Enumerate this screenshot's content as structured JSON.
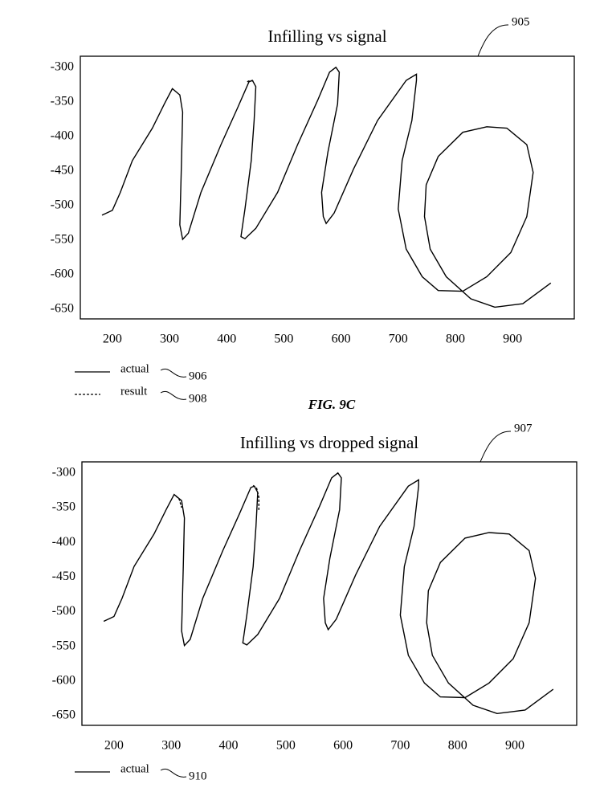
{
  "figure_label": "FIG. 9C",
  "chart_data": [
    {
      "type": "line",
      "title": "Infilling vs signal",
      "reference": "905",
      "xlim": [
        144,
        1008
      ],
      "ylim": [
        -664,
        -284
      ],
      "xticks": [
        200,
        300,
        400,
        500,
        600,
        700,
        800,
        900
      ],
      "yticks": [
        -300,
        -350,
        -400,
        -450,
        -500,
        -550,
        -600,
        -650
      ],
      "grid": false,
      "series": [
        {
          "name": "actual",
          "ref": "906",
          "color": "#000000",
          "dash": false,
          "x": [
            182,
            200,
            214,
            235,
            270,
            291,
            305,
            318,
            323,
            321,
            318,
            323,
            333,
            355,
            390,
            419,
            439,
            445,
            451,
            448,
            443,
            432,
            425,
            432,
            451,
            489,
            524,
            559,
            580,
            591,
            597,
            594,
            577,
            566,
            569,
            574,
            588,
            622,
            664,
            714,
            732,
            732,
            724,
            707,
            700,
            714,
            742,
            770,
            813,
            855,
            897,
            925,
            936,
            925,
            890,
            855,
            813,
            770,
            749,
            746,
            756,
            784,
            827,
            869,
            918,
            967
          ],
          "values": [
            -514,
            -507,
            -481,
            -435,
            -388,
            -353,
            -331,
            -340,
            -365,
            -435,
            -528,
            -549,
            -540,
            -481,
            -412,
            -359,
            -321,
            -319,
            -328,
            -377,
            -435,
            -505,
            -545,
            -548,
            -533,
            -481,
            -412,
            -348,
            -307,
            -300,
            -307,
            -353,
            -423,
            -481,
            -516,
            -526,
            -511,
            -447,
            -377,
            -319,
            -310,
            -319,
            -377,
            -435,
            -505,
            -563,
            -603,
            -623,
            -624,
            -603,
            -568,
            -516,
            -452,
            -412,
            -388,
            -386,
            -394,
            -429,
            -470,
            -516,
            -563,
            -603,
            -635,
            -647,
            -642,
            -612
          ]
        },
        {
          "name": "result",
          "ref": "908",
          "color": "#000000",
          "dash": true,
          "x": [
            436,
            441,
            447
          ],
          "values": [
            -321,
            -319,
            -320
          ]
        }
      ]
    },
    {
      "type": "line",
      "title": "Infilling vs dropped signal",
      "reference": "907",
      "xlim": [
        144,
        1008
      ],
      "ylim": [
        -664,
        -284
      ],
      "xticks": [
        200,
        300,
        400,
        500,
        600,
        700,
        800,
        900
      ],
      "yticks": [
        -300,
        -350,
        -400,
        -450,
        -500,
        -550,
        -600,
        -650
      ],
      "grid": false,
      "series": [
        {
          "name": "actual",
          "ref": "910",
          "color": "#000000",
          "dash": false,
          "x": [
            182,
            200,
            214,
            235,
            270,
            291,
            305,
            318,
            323,
            321,
            318,
            323,
            333,
            355,
            390,
            419,
            439,
            445,
            451,
            448,
            443,
            432,
            425,
            432,
            451,
            489,
            524,
            559,
            580,
            591,
            597,
            594,
            577,
            566,
            569,
            574,
            588,
            622,
            664,
            714,
            732,
            732,
            724,
            707,
            700,
            714,
            742,
            770,
            813,
            855,
            897,
            925,
            936,
            925,
            890,
            855,
            813,
            770,
            749,
            746,
            756,
            784,
            827,
            869,
            918,
            967
          ],
          "values": [
            -514,
            -507,
            -481,
            -435,
            -388,
            -353,
            -331,
            -340,
            -365,
            -435,
            -528,
            -549,
            -540,
            -481,
            -412,
            -359,
            -321,
            -319,
            -328,
            -377,
            -435,
            -505,
            -545,
            -548,
            -533,
            -481,
            -412,
            -348,
            -307,
            -300,
            -307,
            -353,
            -423,
            -481,
            -516,
            -526,
            -511,
            -447,
            -377,
            -319,
            -310,
            -319,
            -377,
            -435,
            -505,
            -563,
            -603,
            -623,
            -624,
            -603,
            -568,
            -516,
            -452,
            -412,
            -388,
            -386,
            -394,
            -429,
            -470,
            -516,
            -563,
            -603,
            -635,
            -647,
            -642,
            -612
          ]
        },
        {
          "color": "#000000",
          "dash": true,
          "x": [
            308,
            314,
            318,
            null,
            443,
            449,
            453,
            453
          ],
          "values": [
            -333,
            -338,
            -350,
            null,
            -318,
            -322,
            -335,
            -355
          ]
        }
      ]
    }
  ]
}
